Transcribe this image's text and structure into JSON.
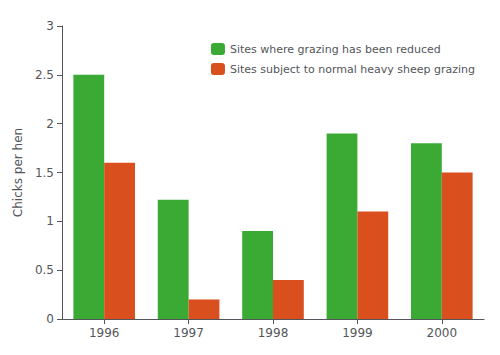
{
  "chart_data": {
    "type": "bar",
    "categories": [
      "1996",
      "1997",
      "1998",
      "1999",
      "2000"
    ],
    "series": [
      {
        "name": "Sites where grazing has been reduced",
        "color": "#3aaa35",
        "values": [
          2.5,
          1.22,
          0.9,
          1.9,
          1.8
        ]
      },
      {
        "name": "Sites subject to normal heavy sheep grazing",
        "color": "#d94f1e",
        "values": [
          1.6,
          0.2,
          0.4,
          1.1,
          1.5
        ]
      }
    ],
    "ylabel": "Chicks per hen",
    "ylim": [
      0,
      3
    ],
    "yticks": [
      0,
      0.5,
      1,
      1.5,
      2,
      2.5,
      3
    ],
    "grid": false,
    "legend": "upper right"
  }
}
